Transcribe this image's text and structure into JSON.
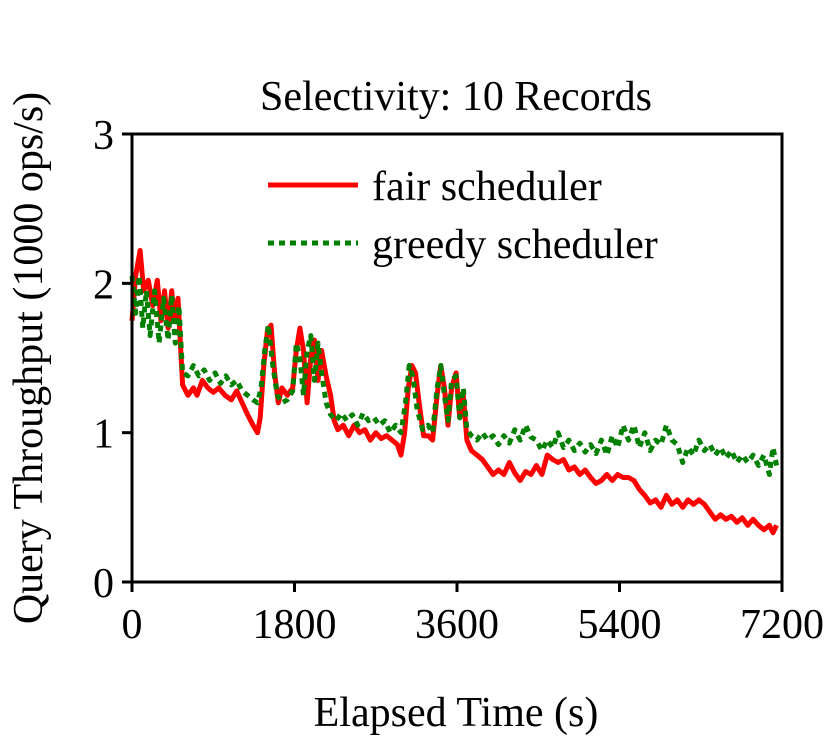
{
  "chart_data": {
    "type": "line",
    "title": "Selectivity: 10 Records",
    "xlabel": "Elapsed Time (s)",
    "ylabel": "Query Throughput (1000 ops/s)",
    "xlim": [
      0,
      7200
    ],
    "ylim": [
      0,
      3
    ],
    "xticks": [
      0,
      1800,
      3600,
      5400,
      7200
    ],
    "xtick_labels": [
      "0",
      "1800",
      "3600",
      "5400",
      "7200"
    ],
    "yticks": [
      0,
      1,
      2,
      3
    ],
    "ytick_labels": [
      "0",
      "1",
      "2",
      "3"
    ],
    "legend_position": "top-right",
    "grid": false,
    "series": [
      {
        "name": "fair scheduler",
        "color": "#ff0000",
        "style": "solid",
        "points": [
          [
            0,
            1.75
          ],
          [
            40,
            2.05
          ],
          [
            90,
            2.22
          ],
          [
            130,
            1.95
          ],
          [
            180,
            2.02
          ],
          [
            230,
            1.85
          ],
          [
            280,
            2.02
          ],
          [
            320,
            1.75
          ],
          [
            360,
            1.95
          ],
          [
            400,
            1.7
          ],
          [
            440,
            1.95
          ],
          [
            470,
            1.75
          ],
          [
            510,
            1.9
          ],
          [
            560,
            1.32
          ],
          [
            620,
            1.25
          ],
          [
            680,
            1.3
          ],
          [
            720,
            1.25
          ],
          [
            780,
            1.35
          ],
          [
            840,
            1.3
          ],
          [
            900,
            1.27
          ],
          [
            960,
            1.3
          ],
          [
            1030,
            1.25
          ],
          [
            1100,
            1.22
          ],
          [
            1160,
            1.28
          ],
          [
            1220,
            1.2
          ],
          [
            1280,
            1.12
          ],
          [
            1340,
            1.05
          ],
          [
            1390,
            1.0
          ],
          [
            1420,
            1.1
          ],
          [
            1460,
            1.45
          ],
          [
            1500,
            1.68
          ],
          [
            1540,
            1.72
          ],
          [
            1580,
            1.4
          ],
          [
            1620,
            1.2
          ],
          [
            1660,
            1.3
          ],
          [
            1720,
            1.25
          ],
          [
            1780,
            1.3
          ],
          [
            1820,
            1.55
          ],
          [
            1860,
            1.7
          ],
          [
            1900,
            1.55
          ],
          [
            1940,
            1.2
          ],
          [
            1980,
            1.5
          ],
          [
            2020,
            1.62
          ],
          [
            2060,
            1.35
          ],
          [
            2100,
            1.55
          ],
          [
            2150,
            1.38
          ],
          [
            2200,
            1.25
          ],
          [
            2240,
            1.08
          ],
          [
            2280,
            1.02
          ],
          [
            2340,
            1.05
          ],
          [
            2400,
            0.98
          ],
          [
            2460,
            1.05
          ],
          [
            2520,
            1.0
          ],
          [
            2580,
            1.02
          ],
          [
            2640,
            0.95
          ],
          [
            2700,
            1.0
          ],
          [
            2760,
            0.96
          ],
          [
            2820,
            0.98
          ],
          [
            2880,
            0.95
          ],
          [
            2940,
            0.92
          ],
          [
            2980,
            0.85
          ],
          [
            3020,
            1.0
          ],
          [
            3060,
            1.3
          ],
          [
            3100,
            1.45
          ],
          [
            3140,
            1.4
          ],
          [
            3180,
            1.2
          ],
          [
            3230,
            0.98
          ],
          [
            3280,
            0.98
          ],
          [
            3330,
            0.95
          ],
          [
            3380,
            1.25
          ],
          [
            3420,
            1.45
          ],
          [
            3460,
            1.3
          ],
          [
            3500,
            1.05
          ],
          [
            3540,
            1.3
          ],
          [
            3590,
            1.4
          ],
          [
            3630,
            1.1
          ],
          [
            3670,
            1.25
          ],
          [
            3710,
            0.95
          ],
          [
            3760,
            0.88
          ],
          [
            3820,
            0.85
          ],
          [
            3880,
            0.82
          ],
          [
            3940,
            0.77
          ],
          [
            4000,
            0.72
          ],
          [
            4060,
            0.75
          ],
          [
            4120,
            0.72
          ],
          [
            4180,
            0.8
          ],
          [
            4240,
            0.73
          ],
          [
            4300,
            0.68
          ],
          [
            4360,
            0.74
          ],
          [
            4420,
            0.72
          ],
          [
            4480,
            0.78
          ],
          [
            4540,
            0.72
          ],
          [
            4600,
            0.85
          ],
          [
            4660,
            0.82
          ],
          [
            4720,
            0.8
          ],
          [
            4780,
            0.82
          ],
          [
            4840,
            0.75
          ],
          [
            4900,
            0.77
          ],
          [
            4960,
            0.72
          ],
          [
            5020,
            0.75
          ],
          [
            5080,
            0.7
          ],
          [
            5140,
            0.66
          ],
          [
            5200,
            0.68
          ],
          [
            5260,
            0.72
          ],
          [
            5320,
            0.68
          ],
          [
            5380,
            0.72
          ],
          [
            5440,
            0.7
          ],
          [
            5500,
            0.7
          ],
          [
            5560,
            0.68
          ],
          [
            5620,
            0.62
          ],
          [
            5680,
            0.58
          ],
          [
            5740,
            0.53
          ],
          [
            5800,
            0.55
          ],
          [
            5860,
            0.5
          ],
          [
            5920,
            0.58
          ],
          [
            5980,
            0.52
          ],
          [
            6040,
            0.55
          ],
          [
            6100,
            0.5
          ],
          [
            6160,
            0.55
          ],
          [
            6220,
            0.52
          ],
          [
            6280,
            0.55
          ],
          [
            6340,
            0.52
          ],
          [
            6400,
            0.47
          ],
          [
            6460,
            0.42
          ],
          [
            6520,
            0.45
          ],
          [
            6580,
            0.42
          ],
          [
            6640,
            0.44
          ],
          [
            6700,
            0.4
          ],
          [
            6760,
            0.43
          ],
          [
            6820,
            0.38
          ],
          [
            6880,
            0.42
          ],
          [
            6940,
            0.38
          ],
          [
            7000,
            0.35
          ],
          [
            7060,
            0.38
          ],
          [
            7100,
            0.33
          ],
          [
            7140,
            0.38
          ]
        ]
      },
      {
        "name": "greedy scheduler",
        "color": "#008000",
        "style": "dotted",
        "points": [
          [
            0,
            2.05
          ],
          [
            40,
            1.8
          ],
          [
            80,
            2.05
          ],
          [
            120,
            1.7
          ],
          [
            160,
            1.95
          ],
          [
            200,
            1.65
          ],
          [
            250,
            1.95
          ],
          [
            300,
            1.6
          ],
          [
            350,
            1.9
          ],
          [
            400,
            1.62
          ],
          [
            440,
            1.92
          ],
          [
            480,
            1.6
          ],
          [
            520,
            1.85
          ],
          [
            560,
            1.4
          ],
          [
            620,
            1.38
          ],
          [
            680,
            1.45
          ],
          [
            740,
            1.38
          ],
          [
            800,
            1.42
          ],
          [
            860,
            1.35
          ],
          [
            920,
            1.4
          ],
          [
            980,
            1.33
          ],
          [
            1040,
            1.38
          ],
          [
            1100,
            1.32
          ],
          [
            1160,
            1.35
          ],
          [
            1220,
            1.28
          ],
          [
            1280,
            1.25
          ],
          [
            1340,
            1.22
          ],
          [
            1390,
            1.2
          ],
          [
            1430,
            1.3
          ],
          [
            1470,
            1.55
          ],
          [
            1510,
            1.72
          ],
          [
            1560,
            1.45
          ],
          [
            1610,
            1.25
          ],
          [
            1660,
            1.2
          ],
          [
            1720,
            1.22
          ],
          [
            1780,
            1.28
          ],
          [
            1820,
            1.6
          ],
          [
            1860,
            1.5
          ],
          [
            1900,
            1.25
          ],
          [
            1940,
            1.55
          ],
          [
            1980,
            1.65
          ],
          [
            2020,
            1.35
          ],
          [
            2060,
            1.6
          ],
          [
            2100,
            1.4
          ],
          [
            2150,
            1.2
          ],
          [
            2200,
            1.12
          ],
          [
            2260,
            1.08
          ],
          [
            2320,
            1.13
          ],
          [
            2380,
            1.08
          ],
          [
            2440,
            1.12
          ],
          [
            2500,
            1.05
          ],
          [
            2560,
            1.13
          ],
          [
            2620,
            1.08
          ],
          [
            2680,
            1.1
          ],
          [
            2740,
            1.05
          ],
          [
            2800,
            1.08
          ],
          [
            2860,
            1.0
          ],
          [
            2920,
            1.05
          ],
          [
            2980,
            1.0
          ],
          [
            3030,
            1.2
          ],
          [
            3070,
            1.45
          ],
          [
            3110,
            1.38
          ],
          [
            3160,
            1.15
          ],
          [
            3220,
            1.02
          ],
          [
            3280,
            1.05
          ],
          [
            3330,
            1.0
          ],
          [
            3380,
            1.3
          ],
          [
            3420,
            1.45
          ],
          [
            3460,
            1.25
          ],
          [
            3500,
            1.08
          ],
          [
            3540,
            1.35
          ],
          [
            3590,
            1.38
          ],
          [
            3630,
            1.1
          ],
          [
            3670,
            1.3
          ],
          [
            3710,
            1.02
          ],
          [
            3760,
            0.98
          ],
          [
            3820,
            0.95
          ],
          [
            3880,
            1.0
          ],
          [
            3940,
            0.95
          ],
          [
            4000,
            0.98
          ],
          [
            4060,
            0.92
          ],
          [
            4120,
            0.98
          ],
          [
            4180,
            0.93
          ],
          [
            4240,
            1.02
          ],
          [
            4300,
            0.95
          ],
          [
            4360,
            1.05
          ],
          [
            4420,
            0.97
          ],
          [
            4480,
            0.95
          ],
          [
            4540,
            0.88
          ],
          [
            4600,
            0.95
          ],
          [
            4660,
            0.9
          ],
          [
            4720,
            1.0
          ],
          [
            4780,
            0.9
          ],
          [
            4840,
            0.95
          ],
          [
            4900,
            0.88
          ],
          [
            4960,
            0.93
          ],
          [
            5020,
            0.87
          ],
          [
            5080,
            0.92
          ],
          [
            5140,
            0.86
          ],
          [
            5200,
            0.95
          ],
          [
            5260,
            0.85
          ],
          [
            5320,
            0.98
          ],
          [
            5380,
            0.9
          ],
          [
            5440,
            1.05
          ],
          [
            5500,
            0.95
          ],
          [
            5560,
            1.05
          ],
          [
            5620,
            0.9
          ],
          [
            5680,
            1.0
          ],
          [
            5740,
            0.88
          ],
          [
            5800,
            0.95
          ],
          [
            5860,
            0.92
          ],
          [
            5920,
            1.05
          ],
          [
            5980,
            0.95
          ],
          [
            6040,
            0.92
          ],
          [
            6100,
            0.8
          ],
          [
            6160,
            0.9
          ],
          [
            6220,
            0.85
          ],
          [
            6280,
            0.95
          ],
          [
            6340,
            0.88
          ],
          [
            6400,
            0.92
          ],
          [
            6460,
            0.85
          ],
          [
            6520,
            0.9
          ],
          [
            6580,
            0.83
          ],
          [
            6640,
            0.88
          ],
          [
            6700,
            0.8
          ],
          [
            6760,
            0.85
          ],
          [
            6820,
            0.8
          ],
          [
            6880,
            0.85
          ],
          [
            6940,
            0.78
          ],
          [
            7000,
            0.85
          ],
          [
            7060,
            0.72
          ],
          [
            7100,
            0.9
          ],
          [
            7140,
            0.78
          ]
        ]
      }
    ]
  }
}
